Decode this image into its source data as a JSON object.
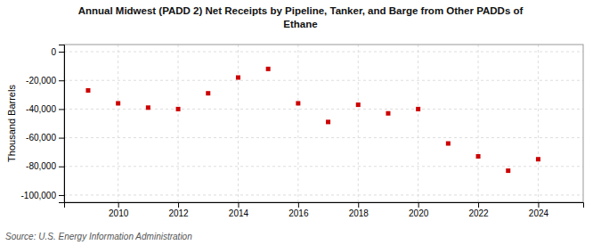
{
  "chart_data": {
    "type": "scatter",
    "title": "Annual Midwest (PADD 2) Net Receipts by Pipeline, Tanker, and Barge from Other PADDs of\nEthane",
    "ylabel": "Thousand Barrels",
    "source": "Source: U.S. Energy Information Administration",
    "x": [
      2009,
      2010,
      2011,
      2012,
      2013,
      2014,
      2015,
      2016,
      2017,
      2018,
      2019,
      2020,
      2021,
      2022,
      2023,
      2024
    ],
    "values": [
      -27000,
      -36000,
      -39000,
      -40000,
      -29000,
      -18000,
      -12000,
      -36000,
      -49000,
      -37000,
      -43000,
      -40000,
      -64000,
      -73000,
      -83000,
      -75000
    ],
    "color": "#cc0000",
    "marker": "square",
    "xlim": [
      2008.2,
      2025.5
    ],
    "xticks": [
      2010,
      2012,
      2014,
      2016,
      2018,
      2020,
      2022,
      2024
    ],
    "ylim": [
      -105000,
      5000
    ],
    "yticks": [
      0,
      {
        "value": -20000,
        "label": "-20,000"
      },
      {
        "value": -40000,
        "label": "-40,000"
      },
      {
        "value": -60000,
        "label": "-60,000"
      },
      {
        "value": -80000,
        "label": "-80,000"
      },
      {
        "value": -100000,
        "label": "-100,000"
      }
    ],
    "grid": true
  }
}
